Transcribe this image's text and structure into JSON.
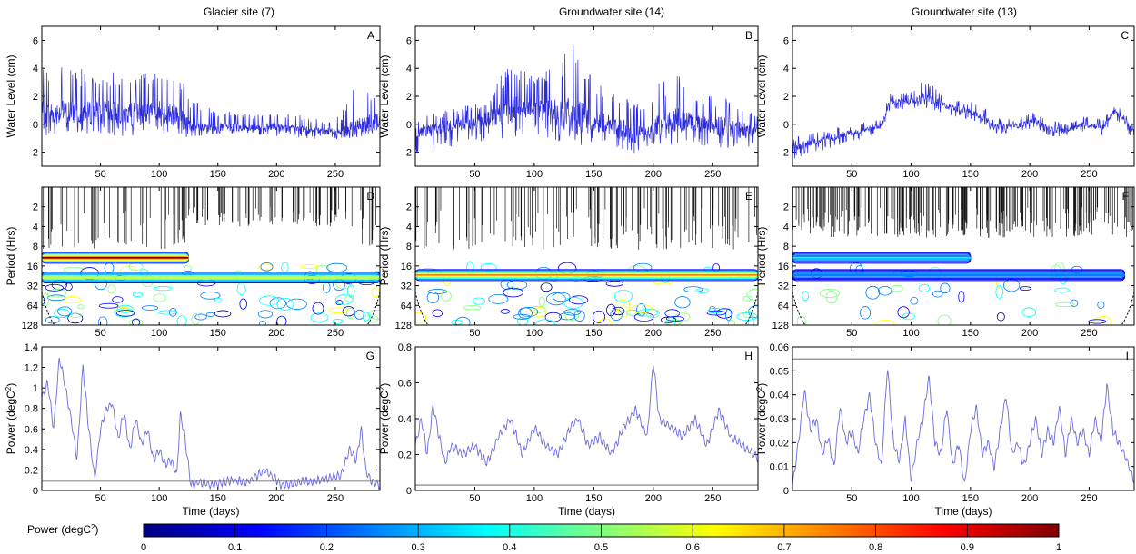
{
  "columns": [
    {
      "title": "Glacier site (7)"
    },
    {
      "title": "Groundwater site (14)"
    },
    {
      "title": "Groundwater site (13)"
    }
  ],
  "colorbar": {
    "label": "Power (degC",
    "label_sup": "2",
    "label_end": ")",
    "ticks": [
      0,
      0.1,
      0.2,
      0.3,
      0.4,
      0.5,
      0.6,
      0.7,
      0.8,
      0.9,
      1
    ],
    "colors": [
      "#00007f",
      "#0000ff",
      "#007fff",
      "#00ffff",
      "#7fff7f",
      "#ffff00",
      "#ff7f00",
      "#ff0000",
      "#7f0000"
    ]
  },
  "chart_data": [
    {
      "id": "A",
      "type": "line",
      "panel_label": "A",
      "title": "Glacier site (7)",
      "ylabel": "Water Level (cm)",
      "xlabel": "",
      "xlim": [
        0,
        288
      ],
      "ylim": [
        -3,
        7
      ],
      "xticks": [
        50,
        100,
        150,
        200,
        250
      ],
      "yticks": [
        -2,
        0,
        2,
        4,
        6
      ],
      "color": "#2b2bdc",
      "series": [
        {
          "x": [
            0,
            20,
            40,
            60,
            80,
            100,
            118,
            125,
            140,
            160,
            180,
            200,
            220,
            240,
            255,
            265,
            275,
            285
          ],
          "y": [
            0.8,
            0.9,
            0.8,
            0.9,
            0.7,
            0.9,
            0.6,
            -0.1,
            -0.3,
            -0.2,
            -0.3,
            -0.2,
            -0.4,
            -0.5,
            -0.6,
            -0.3,
            0.0,
            0.2
          ],
          "spike_max": [
            3.9,
            4.1,
            3.9,
            3.9,
            4.0,
            3.9,
            3.8,
            1.9,
            1.2,
            0.9,
            0.8,
            0.8,
            0.7,
            0.4,
            0.6,
            3.6,
            3.0,
            2.4
          ],
          "spike_min": [
            -0.9,
            -0.7,
            -0.9,
            -0.8,
            -1.0,
            -0.8,
            -0.8,
            -1.0,
            -0.8,
            -0.9,
            -0.7,
            -0.9,
            -1.0,
            -1.0,
            -1.1,
            -0.8,
            -0.9,
            -0.8
          ]
        }
      ]
    },
    {
      "id": "B",
      "type": "line",
      "panel_label": "B",
      "title": "Groundwater site (14)",
      "ylabel": "Water Level (cm)",
      "xlabel": "",
      "xlim": [
        0,
        288
      ],
      "ylim": [
        -3,
        7
      ],
      "xticks": [
        50,
        100,
        150,
        200,
        250
      ],
      "yticks": [
        -2,
        0,
        2,
        4,
        6
      ],
      "color": "#2b2bdc",
      "series": [
        {
          "x": [
            0,
            20,
            40,
            60,
            80,
            100,
            118,
            137,
            150,
            170,
            185,
            200,
            220,
            240,
            260,
            280,
            288
          ],
          "y": [
            -0.5,
            -0.3,
            0.0,
            0.3,
            1.0,
            1.2,
            0.8,
            0.6,
            0.2,
            -0.2,
            -0.9,
            -0.2,
            0.3,
            0.0,
            -0.2,
            -0.5,
            -0.4
          ],
          "spike_max": [
            0.5,
            0.9,
            1.3,
            1.8,
            4.8,
            3.4,
            4.5,
            6.3,
            3.0,
            2.5,
            1.3,
            2.8,
            3.6,
            1.8,
            2.4,
            1.0,
            0.8
          ],
          "spike_min": [
            -2.2,
            -1.8,
            -1.5,
            -1.2,
            -1.0,
            -0.8,
            -1.2,
            -1.8,
            -1.5,
            -2.0,
            -2.5,
            -1.8,
            -1.4,
            -1.5,
            -1.8,
            -2.0,
            -1.8
          ]
        }
      ]
    },
    {
      "id": "C",
      "type": "line",
      "panel_label": "C",
      "title": "Groundwater site (13)",
      "ylabel": "Water Level (cm)",
      "xlabel": "",
      "xlim": [
        0,
        288
      ],
      "ylim": [
        -3,
        7
      ],
      "xticks": [
        50,
        100,
        150,
        200,
        250
      ],
      "yticks": [
        -2,
        0,
        2,
        4,
        6
      ],
      "color": "#2b2bdc",
      "series": [
        {
          "x": [
            0,
            20,
            40,
            60,
            75,
            82,
            100,
            110,
            130,
            150,
            162,
            170,
            190,
            205,
            215,
            230,
            245,
            262,
            272,
            288
          ],
          "y": [
            -1.7,
            -1.2,
            -0.8,
            -0.4,
            -0.1,
            1.6,
            1.6,
            1.9,
            1.3,
            0.9,
            0.5,
            -0.2,
            -0.1,
            0.3,
            -0.3,
            -0.5,
            0.0,
            -0.2,
            1.0,
            -0.6
          ],
          "spike_max": [
            -1.0,
            -0.5,
            -0.2,
            0.2,
            0.4,
            2.3,
            2.3,
            3.3,
            2.0,
            1.6,
            1.2,
            0.4,
            0.5,
            0.9,
            0.3,
            0.1,
            0.6,
            0.4,
            1.5,
            0.0
          ],
          "spike_min": [
            -2.5,
            -2.0,
            -1.5,
            -1.0,
            -0.8,
            1.0,
            1.0,
            1.2,
            0.7,
            0.3,
            -0.1,
            -0.7,
            -0.6,
            -0.2,
            -0.8,
            -1.0,
            -0.5,
            -0.8,
            0.4,
            -1.2
          ]
        }
      ]
    },
    {
      "id": "D",
      "type": "heatmap",
      "panel_label": "D",
      "ylabel": "Period (Hrs)",
      "xlabel": "",
      "xlim": [
        0,
        288
      ],
      "ylim": [
        1,
        128
      ],
      "yscale": "log2",
      "yticks": [
        2,
        4,
        8,
        16,
        32,
        64,
        128
      ],
      "xticks": [
        50,
        100,
        150,
        200,
        250
      ],
      "bands": [
        {
          "period": 12,
          "power": 0.9,
          "x_from": 0,
          "x_to": 125
        },
        {
          "period": 24,
          "power": 0.6,
          "x_from": 0,
          "x_to": 288
        }
      ]
    },
    {
      "id": "E",
      "type": "heatmap",
      "panel_label": "E",
      "ylabel": "Period (Hrs)",
      "xlabel": "",
      "xlim": [
        0,
        288
      ],
      "ylim": [
        1,
        128
      ],
      "yscale": "log2",
      "yticks": [
        2,
        4,
        8,
        16,
        32,
        64,
        128
      ],
      "xticks": [
        50,
        100,
        150,
        200,
        250
      ],
      "bands": [
        {
          "period": 22,
          "power": 0.7,
          "x_from": 0,
          "x_to": 288
        }
      ]
    },
    {
      "id": "F",
      "type": "heatmap",
      "panel_label": "F",
      "ylabel": "Period (Hrs)",
      "xlabel": "",
      "xlim": [
        0,
        288
      ],
      "ylim": [
        1,
        128
      ],
      "yscale": "log2",
      "yticks": [
        2,
        4,
        8,
        16,
        32,
        64,
        128
      ],
      "xticks": [
        50,
        100,
        150,
        200,
        250
      ],
      "bands": [
        {
          "period": 12,
          "power": 0.35,
          "x_from": 0,
          "x_to": 150
        },
        {
          "period": 22,
          "power": 0.3,
          "x_from": 0,
          "x_to": 280
        }
      ]
    },
    {
      "id": "G",
      "type": "line",
      "panel_label": "G",
      "ylabel": "Power (degC",
      "ylabel_sup": "2",
      "ylabel_end": ")",
      "xlabel": "Time (days)",
      "xlim": [
        0,
        288
      ],
      "ylim": [
        0,
        1.4
      ],
      "xticks": [
        50,
        100,
        150,
        200,
        250
      ],
      "yticks": [
        0,
        0.2,
        0.4,
        0.6,
        0.8,
        1,
        1.2,
        1.4
      ],
      "color": "#6b6bd8",
      "threshold": 0.09,
      "series": [
        {
          "x": [
            0,
            5,
            10,
            15,
            20,
            25,
            30,
            35,
            40,
            45,
            50,
            55,
            60,
            65,
            70,
            75,
            80,
            85,
            90,
            95,
            100,
            105,
            110,
            115,
            118,
            122,
            127,
            135,
            145,
            160,
            175,
            190,
            205,
            220,
            240,
            255,
            262,
            268,
            272,
            276,
            280,
            288
          ],
          "y": [
            0.9,
            1.05,
            0.6,
            1.3,
            1.0,
            0.7,
            0.3,
            1.22,
            0.6,
            0.1,
            0.6,
            0.8,
            0.85,
            0.5,
            0.75,
            0.4,
            0.7,
            0.45,
            0.6,
            0.3,
            0.4,
            0.25,
            0.3,
            0.15,
            0.75,
            0.5,
            0.05,
            0.08,
            0.05,
            0.1,
            0.08,
            0.2,
            0.05,
            0.08,
            0.1,
            0.15,
            0.4,
            0.3,
            0.6,
            0.2,
            0.1,
            0.05
          ]
        }
      ]
    },
    {
      "id": "H",
      "type": "line",
      "panel_label": "H",
      "ylabel": "Power (degC",
      "ylabel_sup": "2",
      "ylabel_end": ")",
      "xlabel": "Time (days)",
      "xlim": [
        0,
        288
      ],
      "ylim": [
        0,
        0.8
      ],
      "xticks": [
        50,
        100,
        150,
        200,
        250
      ],
      "yticks": [
        0,
        0.2,
        0.4,
        0.6,
        0.8
      ],
      "color": "#6b6bd8",
      "threshold": 0.03,
      "series": [
        {
          "x": [
            0,
            5,
            10,
            15,
            20,
            25,
            30,
            40,
            50,
            60,
            70,
            80,
            90,
            100,
            110,
            120,
            130,
            137,
            145,
            155,
            165,
            175,
            185,
            195,
            200,
            205,
            215,
            225,
            235,
            245,
            255,
            265,
            275,
            288
          ],
          "y": [
            0.25,
            0.4,
            0.2,
            0.48,
            0.3,
            0.15,
            0.25,
            0.2,
            0.25,
            0.15,
            0.3,
            0.4,
            0.2,
            0.35,
            0.25,
            0.2,
            0.35,
            0.4,
            0.25,
            0.3,
            0.2,
            0.35,
            0.45,
            0.3,
            0.72,
            0.4,
            0.35,
            0.3,
            0.4,
            0.25,
            0.45,
            0.3,
            0.25,
            0.18
          ]
        }
      ]
    },
    {
      "id": "I",
      "type": "line",
      "panel_label": "I",
      "ylabel": "Power (degC",
      "ylabel_sup": "2",
      "ylabel_end": ")",
      "xlabel": "Time (days)",
      "xlim": [
        0,
        288
      ],
      "ylim": [
        0,
        0.06
      ],
      "xticks": [
        50,
        100,
        150,
        200,
        250
      ],
      "yticks": [
        0,
        0.01,
        0.02,
        0.03,
        0.04,
        0.05,
        0.06
      ],
      "color": "#6b6bd8",
      "threshold": 0.055,
      "series": [
        {
          "x": [
            0,
            5,
            10,
            15,
            20,
            25,
            30,
            35,
            40,
            45,
            50,
            55,
            60,
            65,
            70,
            75,
            80,
            85,
            90,
            95,
            100,
            105,
            110,
            115,
            120,
            125,
            130,
            135,
            140,
            145,
            150,
            155,
            160,
            165,
            170,
            175,
            180,
            185,
            190,
            195,
            200,
            205,
            210,
            215,
            220,
            225,
            230,
            235,
            240,
            245,
            250,
            255,
            260,
            265,
            270,
            275,
            280,
            288
          ],
          "y": [
            0.002,
            0.02,
            0.042,
            0.025,
            0.03,
            0.015,
            0.022,
            0.01,
            0.035,
            0.02,
            0.025,
            0.015,
            0.03,
            0.04,
            0.02,
            0.01,
            0.052,
            0.02,
            0.012,
            0.03,
            0.004,
            0.02,
            0.03,
            0.048,
            0.02,
            0.015,
            0.035,
            0.01,
            0.02,
            0.002,
            0.025,
            0.035,
            0.015,
            0.02,
            0.01,
            0.025,
            0.04,
            0.015,
            0.02,
            0.01,
            0.02,
            0.03,
            0.015,
            0.025,
            0.02,
            0.035,
            0.015,
            0.03,
            0.02,
            0.025,
            0.015,
            0.03,
            0.02,
            0.044,
            0.025,
            0.02,
            0.015,
            0.004
          ]
        }
      ]
    }
  ]
}
